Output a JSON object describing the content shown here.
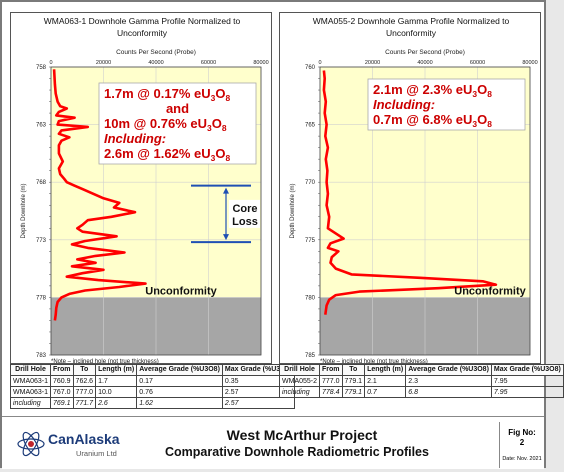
{
  "chart_data": [
    {
      "type": "line",
      "title": "WMA063-1 Downhole Gamma Profile Normalized to Unconformity",
      "xlabel": "Counts Per Second (Probe)",
      "ylabel": "Depth Downhole (m)",
      "xlim": [
        0,
        80000
      ],
      "ylim": [
        758,
        783
      ],
      "x_ticks": [
        "0",
        "20000",
        "40000",
        "60000",
        "80000"
      ],
      "y_ticks": [
        "758",
        "763",
        "768",
        "773",
        "778",
        "783"
      ],
      "unconformity_depth": 778.0,
      "unconformity_label": "Unconformity",
      "note": "*Note – inclined hole (not true thickness)",
      "annotation_lines": [
        "1.7m @ 0.17% eU3O8",
        "and",
        "10m @ 0.76% eU3O8",
        "Including:",
        "2.6m @ 1.62% eU3O8"
      ],
      "core_loss_label": [
        "Core",
        "Loss"
      ],
      "core_loss_range": [
        768.3,
        773.2
      ],
      "series": [
        {
          "x": [
            1200,
            1500,
            1800,
            2500,
            3500,
            6000,
            3000,
            2000,
            9000,
            3000,
            2500,
            14000,
            4000,
            3000,
            7000,
            4000,
            3000,
            3000,
            4500,
            3000,
            3500,
            5000,
            6000,
            9000,
            12000,
            16000,
            20000,
            26000,
            24000,
            32000,
            23000,
            14000,
            12000,
            10000,
            12000,
            25000,
            13000,
            8000,
            14000,
            28000,
            17000,
            10000,
            17000,
            8000,
            20000,
            12000,
            6000,
            18000,
            36000,
            26000,
            13000,
            7000,
            4000,
            2500,
            2000,
            1800,
            1500
          ],
          "y": [
            758.2,
            759.5,
            760.3,
            761.0,
            761.4,
            761.6,
            761.9,
            762.2,
            762.4,
            762.7,
            763.0,
            763.2,
            763.5,
            763.8,
            764.1,
            764.4,
            764.8,
            765.5,
            766.2,
            766.8,
            767.3,
            767.7,
            768.0,
            768.3,
            768.6,
            769.0,
            769.4,
            769.8,
            770.2,
            770.6,
            771.0,
            771.3,
            771.7,
            772.0,
            772.3,
            772.7,
            773.1,
            773.4,
            773.7,
            774.1,
            774.4,
            774.7,
            775.0,
            775.3,
            775.6,
            775.9,
            776.2,
            776.5,
            776.8,
            777.1,
            777.4,
            777.7,
            778.0,
            778.4,
            778.9,
            779.5,
            780.0
          ]
        }
      ]
    },
    {
      "type": "line",
      "title": "WMA055-2 Downhole Gamma Profile Normalized to Unconformity",
      "xlabel": "Counts Per Second (Probe)",
      "ylabel": "Depth Downhole (m)",
      "xlim": [
        0,
        80000
      ],
      "ylim": [
        760,
        785
      ],
      "x_ticks": [
        "0",
        "20000",
        "40000",
        "60000",
        "80000"
      ],
      "y_ticks": [
        "760",
        "765",
        "770",
        "775",
        "780",
        "785"
      ],
      "unconformity_depth": 780.0,
      "unconformity_label": "Unconformity",
      "note": "*Note – inclined hole (not true thickness)",
      "annotation_lines": [
        "2.1m @ 2.3% eU3O8",
        "Including:",
        "0.7m @ 6.8% eU3O8"
      ],
      "series": [
        {
          "x": [
            1500,
            1800,
            1500,
            2200,
            1800,
            2500,
            2000,
            3000,
            2200,
            2800,
            2500,
            3000,
            2500,
            3500,
            3000,
            9000,
            4000,
            3000,
            7000,
            4500,
            4000,
            6000,
            12000,
            38000,
            62000,
            67000,
            45000,
            15000,
            6000,
            3500,
            2500,
            2000
          ],
          "y": [
            760.3,
            761.0,
            762.0,
            763.0,
            764.0,
            765.0,
            766.0,
            767.0,
            768.0,
            769.0,
            770.0,
            771.0,
            772.0,
            773.0,
            774.0,
            774.9,
            775.3,
            775.7,
            776.0,
            776.5,
            777.0,
            777.5,
            778.0,
            778.3,
            778.6,
            778.9,
            779.2,
            779.5,
            779.8,
            780.2,
            780.7,
            781.5
          ]
        }
      ]
    }
  ],
  "table_left": {
    "headers": [
      "Drill Hole",
      "From",
      "To",
      "Length (m)",
      "Average Grade (%U3O8)",
      "Max Grade (%U3O8)"
    ],
    "rows": [
      [
        "WMA063-1",
        "760.9",
        "762.6",
        "1.7",
        "0.17",
        "0.35"
      ],
      [
        "WMA063-1",
        "767.0",
        "777.0",
        "10.0",
        "0.76",
        "2.57"
      ],
      [
        "including",
        "769.1",
        "771.7",
        "2.6",
        "1.62",
        "2.57"
      ]
    ]
  },
  "table_right": {
    "headers": [
      "Drill Hole",
      "From",
      "To",
      "Length (m)",
      "Average Grade (%U3O8)",
      "Max Grade (%U3O8)"
    ],
    "rows": [
      [
        "WMA055-2",
        "777.0",
        "779.1",
        "2.1",
        "2.3",
        "7.95"
      ],
      [
        "including",
        "778.4",
        "779.1",
        "0.7",
        "6.8",
        "7.95"
      ]
    ]
  },
  "footer": {
    "logo_name": "CanAlaska",
    "logo_sub": "Uranium Ltd",
    "project": "West McArthur Project",
    "subtitle": "Comparative Downhole Radiometric Profiles",
    "fig_label": "Fig No:",
    "fig_number": "2",
    "date": "Date: Nov. 2021"
  },
  "colors": {
    "plot_bg": "#ffffcc",
    "curve": "#ff0000",
    "below": "#a6a6a6",
    "annot_text": "#cc0000",
    "arrow": "#1f4fb4",
    "logo": "#1c3b79"
  }
}
